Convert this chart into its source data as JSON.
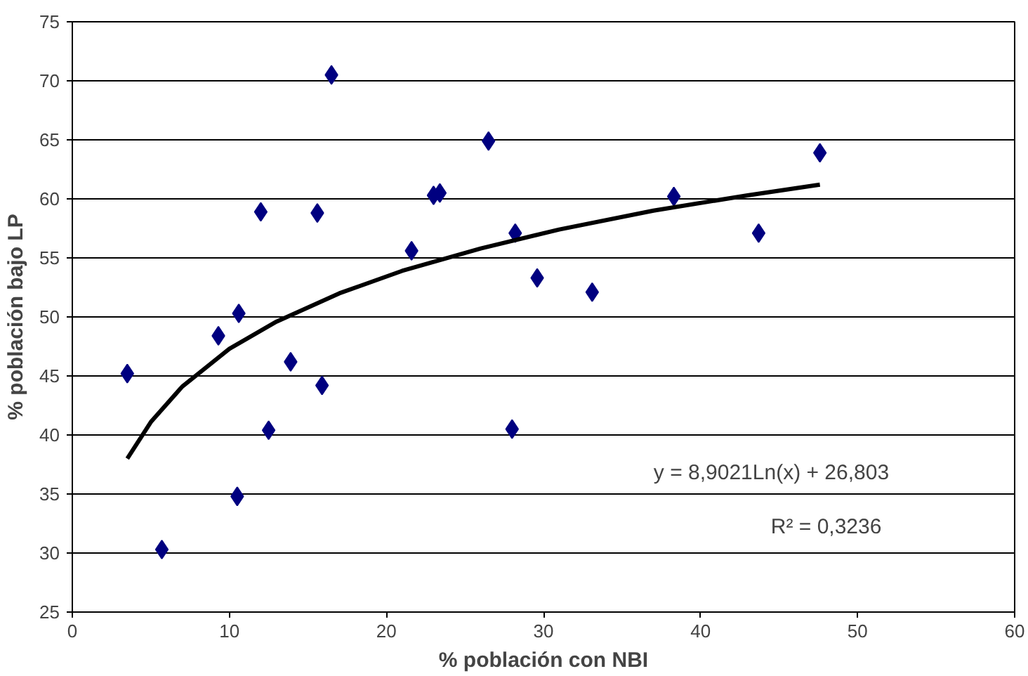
{
  "chart_data": {
    "type": "scatter",
    "xlabel": "% población con NBI",
    "ylabel": "% población bajo LP",
    "xlim": [
      0,
      60
    ],
    "xticks": [
      0,
      10,
      20,
      30,
      40,
      50,
      60
    ],
    "ylim": [
      25,
      75
    ],
    "yticks": [
      25,
      30,
      35,
      40,
      45,
      50,
      55,
      60,
      65,
      70,
      75
    ],
    "grid": "y",
    "series": [
      {
        "marker": "diamond",
        "color": "#000080",
        "x": [
          3.5,
          5.7,
          9.3,
          10.5,
          10.6,
          12,
          12.5,
          13.9,
          15.6,
          15.9,
          16.5,
          21.6,
          23,
          23.4,
          26.5,
          28,
          28.2,
          29.6,
          33.1,
          38.3,
          43.7,
          47.6
        ],
        "values": [
          45.2,
          30.3,
          48.4,
          34.8,
          50.3,
          58.9,
          40.4,
          46.2,
          58.8,
          44.2,
          70.5,
          55.6,
          60.3,
          60.5,
          64.9,
          40.5,
          57.1,
          53.3,
          52.1,
          60.2,
          57.1,
          63.9
        ]
      },
      {
        "type": "line",
        "color": "#000000",
        "x": [
          3.5,
          5,
          7,
          10,
          13,
          17,
          21,
          26,
          31,
          37,
          43,
          47.6
        ],
        "values": [
          38.0,
          41.1,
          44.1,
          47.3,
          49.6,
          52.0,
          53.9,
          55.8,
          57.4,
          59.0,
          60.3,
          61.2
        ]
      }
    ],
    "annotations": [
      "y = 8,9021Ln(x) + 26,803",
      "R² = 0,3236"
    ]
  }
}
